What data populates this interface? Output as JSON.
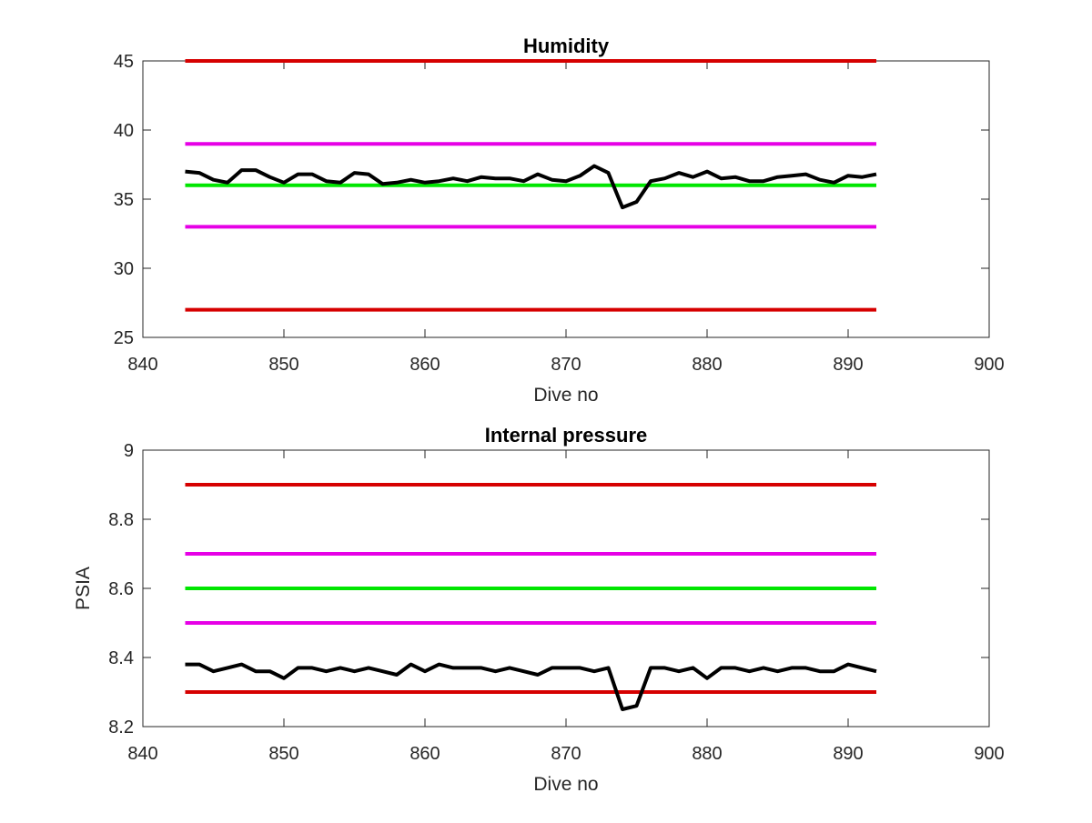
{
  "chart_data": [
    {
      "type": "line",
      "title": "Humidity",
      "xlabel": "Dive no",
      "ylabel": "",
      "xlim": [
        840,
        900
      ],
      "ylim": [
        25,
        45
      ],
      "xticks": [
        "840",
        "850",
        "860",
        "870",
        "880",
        "890",
        "900"
      ],
      "yticks": [
        "25",
        "30",
        "35",
        "40",
        "45"
      ],
      "grid": false,
      "legend": "none",
      "series": [
        {
          "color": "#d60000",
          "x": [
            843,
            892
          ],
          "values": [
            45,
            45
          ]
        },
        {
          "color": "#e600e6",
          "x": [
            843,
            892
          ],
          "values": [
            39,
            39
          ]
        },
        {
          "color": "#00e600",
          "x": [
            843,
            892
          ],
          "values": [
            36,
            36
          ]
        },
        {
          "color": "#e600e6",
          "x": [
            843,
            892
          ],
          "values": [
            33,
            33
          ]
        },
        {
          "color": "#d60000",
          "x": [
            843,
            892
          ],
          "values": [
            27,
            27
          ]
        },
        {
          "color": "#000000",
          "x": [
            843,
            844,
            845,
            846,
            847,
            848,
            849,
            850,
            851,
            852,
            853,
            854,
            855,
            856,
            857,
            858,
            859,
            860,
            861,
            862,
            863,
            864,
            865,
            866,
            867,
            868,
            869,
            870,
            871,
            872,
            873,
            874,
            875,
            876,
            877,
            878,
            879,
            880,
            881,
            882,
            883,
            884,
            885,
            886,
            887,
            888,
            889,
            890,
            891,
            892
          ],
          "values": [
            37.0,
            36.9,
            36.4,
            36.2,
            37.1,
            37.1,
            36.6,
            36.2,
            36.8,
            36.8,
            36.3,
            36.2,
            36.9,
            36.8,
            36.1,
            36.2,
            36.4,
            36.2,
            36.3,
            36.5,
            36.3,
            36.6,
            36.5,
            36.5,
            36.3,
            36.8,
            36.4,
            36.3,
            36.7,
            37.4,
            36.9,
            34.4,
            34.8,
            36.3,
            36.5,
            36.9,
            36.6,
            37.0,
            36.5,
            36.6,
            36.3,
            36.3,
            36.6,
            36.7,
            36.8,
            36.4,
            36.2,
            36.7,
            36.6,
            36.8
          ]
        }
      ]
    },
    {
      "type": "line",
      "title": "Internal pressure",
      "xlabel": "Dive no",
      "ylabel": "PSIA",
      "xlim": [
        840,
        900
      ],
      "ylim": [
        8.2,
        9
      ],
      "xticks": [
        "840",
        "850",
        "860",
        "870",
        "880",
        "890",
        "900"
      ],
      "yticks": [
        "8.2",
        "8.4",
        "8.6",
        "8.8",
        "9"
      ],
      "grid": false,
      "legend": "none",
      "series": [
        {
          "color": "#d60000",
          "x": [
            843,
            892
          ],
          "values": [
            8.9,
            8.9
          ]
        },
        {
          "color": "#e600e6",
          "x": [
            843,
            892
          ],
          "values": [
            8.7,
            8.7
          ]
        },
        {
          "color": "#00e600",
          "x": [
            843,
            892
          ],
          "values": [
            8.6,
            8.6
          ]
        },
        {
          "color": "#e600e6",
          "x": [
            843,
            892
          ],
          "values": [
            8.5,
            8.5
          ]
        },
        {
          "color": "#d60000",
          "x": [
            843,
            892
          ],
          "values": [
            8.3,
            8.3
          ]
        },
        {
          "color": "#000000",
          "x": [
            843,
            844,
            845,
            846,
            847,
            848,
            849,
            850,
            851,
            852,
            853,
            854,
            855,
            856,
            857,
            858,
            859,
            860,
            861,
            862,
            863,
            864,
            865,
            866,
            867,
            868,
            869,
            870,
            871,
            872,
            873,
            874,
            875,
            876,
            877,
            878,
            879,
            880,
            881,
            882,
            883,
            884,
            885,
            886,
            887,
            888,
            889,
            890,
            891,
            892
          ],
          "values": [
            8.38,
            8.38,
            8.36,
            8.37,
            8.38,
            8.36,
            8.36,
            8.34,
            8.37,
            8.37,
            8.36,
            8.37,
            8.36,
            8.37,
            8.36,
            8.35,
            8.38,
            8.36,
            8.38,
            8.37,
            8.37,
            8.37,
            8.36,
            8.37,
            8.36,
            8.35,
            8.37,
            8.37,
            8.37,
            8.36,
            8.37,
            8.25,
            8.26,
            8.37,
            8.37,
            8.36,
            8.37,
            8.34,
            8.37,
            8.37,
            8.36,
            8.37,
            8.36,
            8.37,
            8.37,
            8.36,
            8.36,
            8.38,
            8.37,
            8.36
          ]
        }
      ]
    }
  ]
}
